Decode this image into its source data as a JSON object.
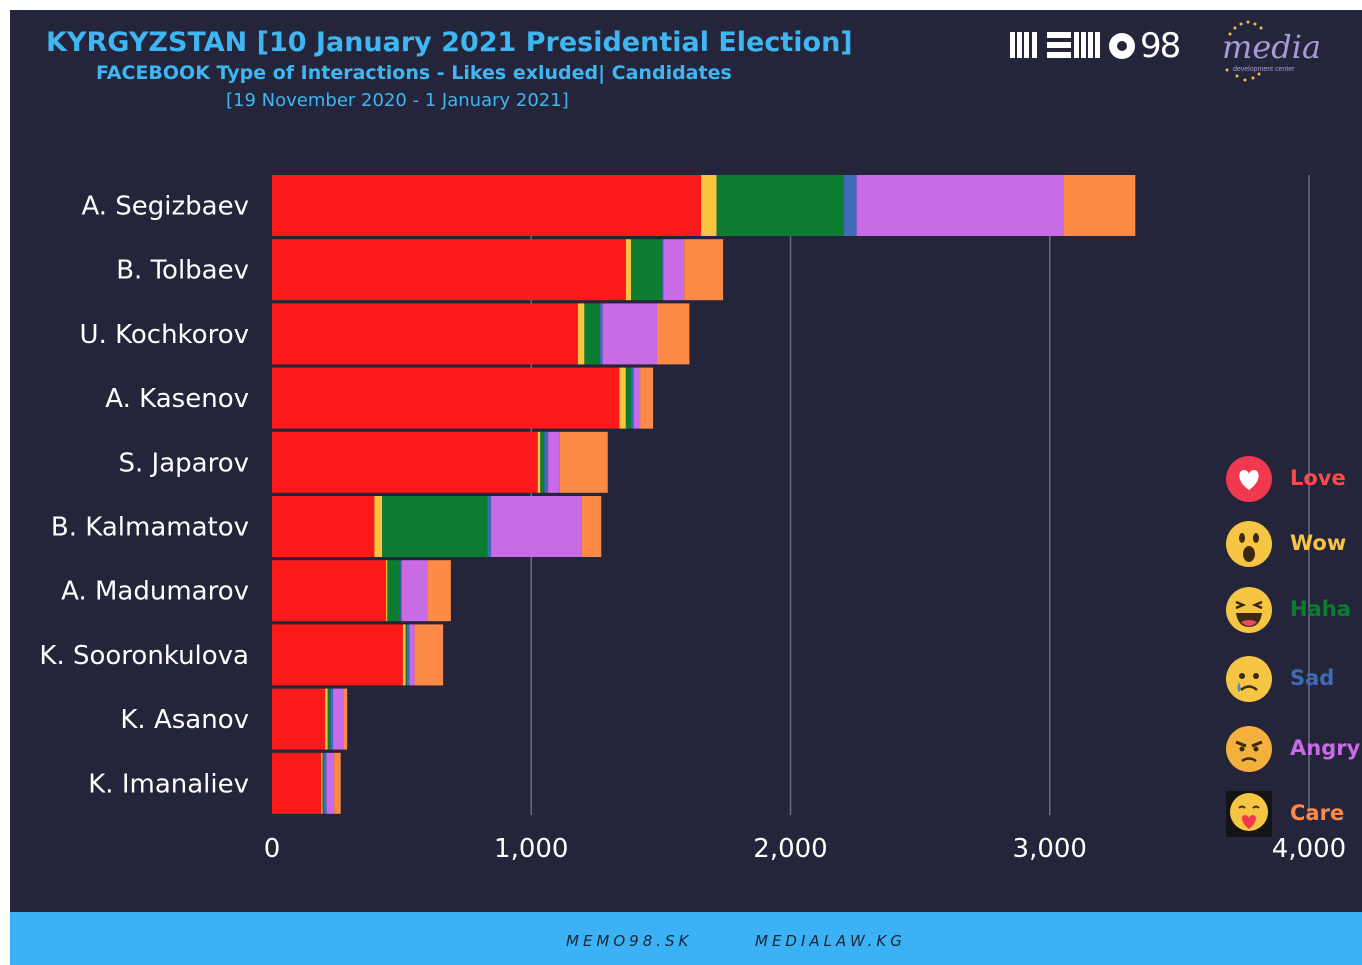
{
  "header": {
    "title": "KYRGYZSTAN [10 January 2021 Presidential Election]",
    "subtitle": "FACEBOOK Type of Interactions - Likes exluded| Candidates",
    "date_range": "[19 November 2020 - 1 January 2021]"
  },
  "logos": {
    "memo_logo_text": "98",
    "media_logo_word": "media",
    "media_logo_sub": "development center"
  },
  "chart_data": {
    "type": "bar",
    "orientation": "horizontal",
    "stacked": true,
    "categories": [
      "A. Segizbaev",
      "B. Tolbaev",
      "U. Kochkorov",
      "A. Kasenov",
      "S. Japarov",
      "B. Kalmamatov",
      "A. Madumarov",
      "K. Sooronkulova",
      "K. Asanov",
      "K. Imanaliev"
    ],
    "series": [
      {
        "name": "Love",
        "color": "#fb1919",
        "values": [
          1655,
          1365,
          1180,
          1340,
          1025,
          395,
          440,
          505,
          205,
          190
        ]
      },
      {
        "name": "Wow",
        "color": "#fbc53f",
        "values": [
          60,
          20,
          25,
          25,
          10,
          30,
          5,
          10,
          10,
          5
        ]
      },
      {
        "name": "Haha",
        "color": "#0c7d30",
        "values": [
          490,
          120,
          60,
          20,
          15,
          405,
          50,
          5,
          10,
          5
        ]
      },
      {
        "name": "Sad",
        "color": "#3e6ab6",
        "values": [
          50,
          5,
          10,
          10,
          15,
          15,
          5,
          10,
          10,
          10
        ]
      },
      {
        "name": "Angry",
        "color": "#c96ae6",
        "values": [
          800,
          80,
          210,
          25,
          45,
          350,
          100,
          20,
          40,
          30
        ]
      },
      {
        "name": "Care",
        "color": "#fd8b47",
        "values": [
          275,
          150,
          125,
          50,
          185,
          75,
          90,
          110,
          15,
          25
        ]
      }
    ],
    "xlim": [
      0,
      4000
    ],
    "xticks": [
      "0",
      "1,000",
      "2,000",
      "3,000",
      "4,000"
    ],
    "grid": true,
    "legend_position": "right"
  },
  "legend_icons": [
    "heart-icon",
    "wow-emoji-icon",
    "haha-emoji-icon",
    "sad-emoji-icon",
    "angry-emoji-icon",
    "care-emoji-icon"
  ],
  "footer": {
    "link1": "MEMO98.SK",
    "link2": "MEDIALAW.KG"
  }
}
